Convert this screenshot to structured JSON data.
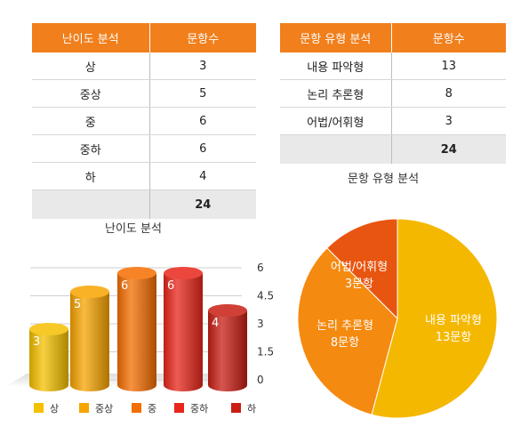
{
  "difficulty_table": {
    "headers": [
      "난이도 분석",
      "문항수"
    ],
    "rows": [
      [
        "상",
        "3"
      ],
      [
        "중상",
        "5"
      ],
      [
        "중",
        "6"
      ],
      [
        "중하",
        "6"
      ],
      [
        "하",
        "4"
      ]
    ],
    "total": "24"
  },
  "type_table": {
    "headers": [
      "문항 유형 분석",
      "문항수"
    ],
    "rows": [
      [
        "내용 파악형",
        "13"
      ],
      [
        "논리 추론형",
        "8"
      ],
      [
        "어법/어휘형",
        "3"
      ]
    ],
    "total": "24"
  },
  "chart_data": [
    {
      "type": "bar",
      "title": "난이도 분석",
      "categories": [
        "상",
        "중상",
        "중",
        "중하",
        "하"
      ],
      "values": [
        3,
        5,
        6,
        6,
        4
      ],
      "data_labels": [
        "3",
        "5",
        "6",
        "6",
        "4"
      ],
      "ylim": [
        0,
        6
      ],
      "yticks": [
        "0",
        "1.5",
        "3",
        "4.5",
        "6"
      ],
      "colors": [
        "#f5c000",
        "#f8a400",
        "#f46e00",
        "#e8261a",
        "#c81e14"
      ],
      "grid": true,
      "legend": "bottom"
    },
    {
      "type": "pie",
      "title": "문항 유형 분석",
      "labels": [
        "내용 파악형",
        "논리 추론형",
        "어법/어휘형"
      ],
      "values": [
        13,
        8,
        3
      ],
      "data_labels": [
        "13문항",
        "8문항",
        "3문항"
      ],
      "colors": [
        "#f5b800",
        "#f58a10",
        "#e85510"
      ]
    }
  ]
}
